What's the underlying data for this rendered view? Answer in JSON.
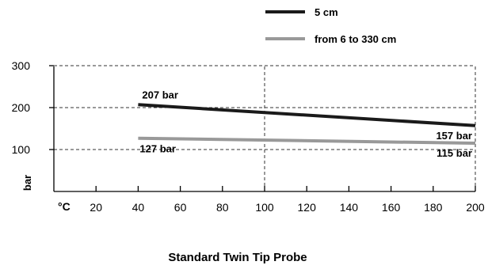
{
  "chart_data": {
    "type": "line",
    "title": "Standard Twin Tip Probe",
    "xlabel": "°C",
    "ylabel": "bar",
    "x_ticks": [
      20,
      40,
      60,
      80,
      100,
      120,
      140,
      160,
      180,
      200
    ],
    "x_tick_labels": [
      "20",
      "40",
      "60",
      "80",
      "100",
      "120",
      "140",
      "160",
      "180",
      "200"
    ],
    "y_ticks": [
      100,
      200,
      300
    ],
    "y_tick_labels": [
      "100",
      "200",
      "300"
    ],
    "xlim": [
      0,
      200
    ],
    "ylim": [
      0,
      300
    ],
    "grid": "dashed at x=100, x=200 and y=100, 200, 300",
    "legend_position": "top-center",
    "series": [
      {
        "name": "5 cm",
        "color": "#1a1a1a",
        "x": [
          40,
          200
        ],
        "y": [
          207,
          157
        ],
        "labels": [
          {
            "x": 40,
            "y": 207,
            "text": "207 bar",
            "pos": "above"
          },
          {
            "x": 200,
            "y": 157,
            "text": "157 bar",
            "pos": "below-left"
          }
        ]
      },
      {
        "name": "from 6 to 330 cm",
        "color": "#999999",
        "x": [
          40,
          200
        ],
        "y": [
          127,
          115
        ],
        "labels": [
          {
            "x": 40,
            "y": 127,
            "text": "127 bar",
            "pos": "below"
          },
          {
            "x": 200,
            "y": 115,
            "text": "115 bar",
            "pos": "below-left"
          }
        ]
      }
    ]
  }
}
